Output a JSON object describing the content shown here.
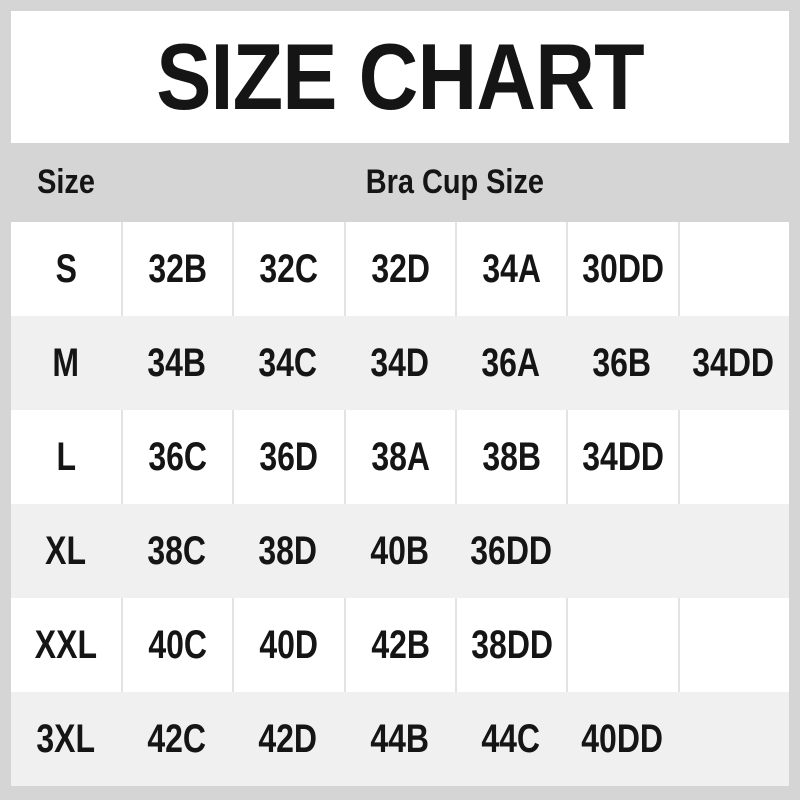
{
  "title": "SIZE CHART",
  "header": {
    "size": "Size",
    "cup": "Bra Cup Size"
  },
  "chart_data": {
    "type": "table",
    "title": "SIZE CHART",
    "column_headers": [
      "Size",
      "Bra Cup Size"
    ],
    "rows": [
      {
        "size": "S",
        "cups": [
          "32B",
          "32C",
          "32D",
          "34A",
          "30DD",
          ""
        ]
      },
      {
        "size": "M",
        "cups": [
          "34B",
          "34C",
          "34D",
          "36A",
          "36B",
          "34DD"
        ]
      },
      {
        "size": "L",
        "cups": [
          "36C",
          "36D",
          "38A",
          "38B",
          "34DD",
          ""
        ]
      },
      {
        "size": "XL",
        "cups": [
          "38C",
          "38D",
          "40B",
          "36DD",
          "",
          ""
        ]
      },
      {
        "size": "XXL",
        "cups": [
          "40C",
          "40D",
          "42B",
          "38DD",
          "",
          ""
        ]
      },
      {
        "size": "3XL",
        "cups": [
          "42C",
          "42D",
          "44B",
          "44C",
          "40DD",
          ""
        ]
      }
    ]
  },
  "colors": {
    "frame_gray": "#d5d5d5",
    "title_band": "#ffffff",
    "row_white": "#ffffff",
    "row_alt": "#f0f0f0",
    "separator": "#e3e3e3",
    "text": "#151515"
  }
}
